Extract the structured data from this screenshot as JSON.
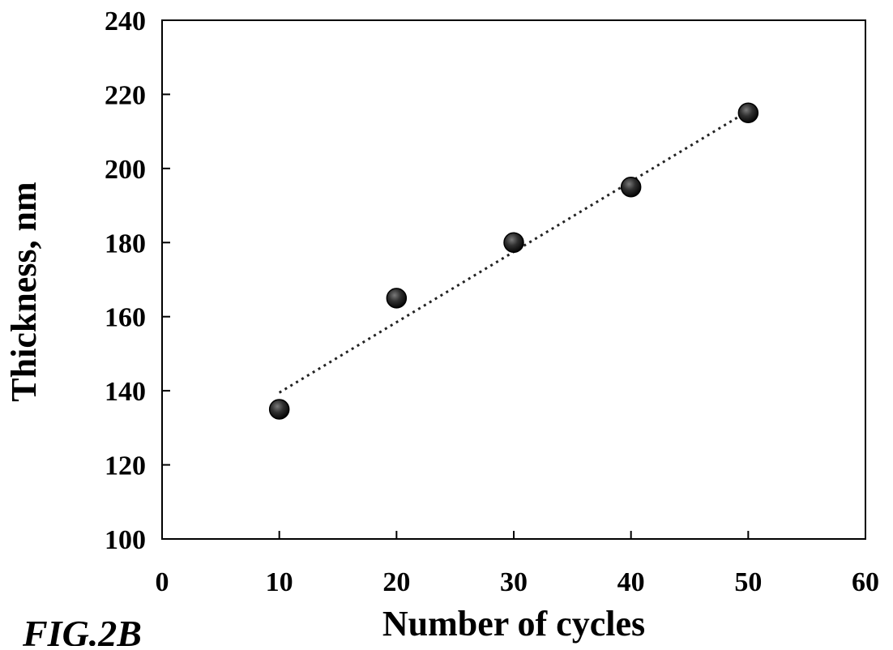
{
  "chart_data": {
    "type": "scatter",
    "xlabel": "Number of cycles",
    "ylabel": "Thickness, nm",
    "xlim": [
      0,
      60
    ],
    "ylim": [
      100,
      240
    ],
    "x_ticks": [
      "0",
      "10",
      "20",
      "30",
      "40",
      "50",
      "60"
    ],
    "y_ticks": [
      "100",
      "120",
      "140",
      "160",
      "180",
      "200",
      "220",
      "240"
    ],
    "grid": false,
    "legend": "none",
    "series": [
      {
        "x": [
          10,
          20,
          30,
          40,
          50
        ],
        "y": [
          135,
          165,
          180,
          195,
          215
        ],
        "marker": "circle",
        "color": "#000000"
      }
    ],
    "trendline": {
      "style": "dotted",
      "x": [
        10,
        50
      ],
      "y": [
        139.5,
        215.5
      ]
    }
  },
  "figure_label": "FIG.2B"
}
